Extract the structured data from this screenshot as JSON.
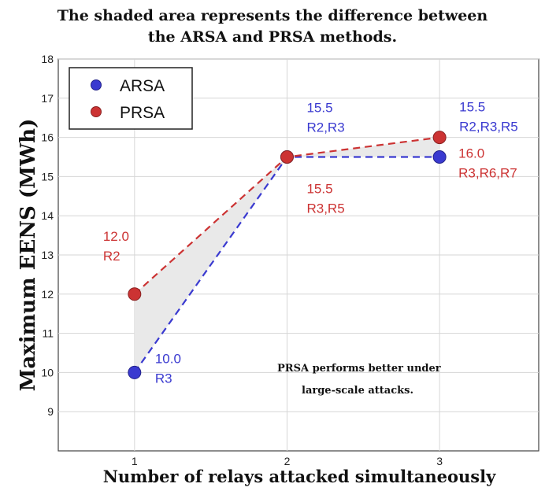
{
  "chart_data": {
    "type": "line",
    "title_lines": [
      "The shaded area represents the difference between",
      "the ARSA and PRSA methods."
    ],
    "xlabel": "Number of relays attacked simultaneously",
    "ylabel": "Maximum EENS (MWh)",
    "x": [
      1,
      2,
      3
    ],
    "xticks": [
      "1",
      "2",
      "3"
    ],
    "xlim": [
      0.5,
      3.65
    ],
    "ylim": [
      8,
      18
    ],
    "yticks": [
      "9",
      "10",
      "11",
      "12",
      "13",
      "14",
      "15",
      "16",
      "17",
      "18"
    ],
    "grid": true,
    "legend_position": "top-left",
    "shaded_between_series": true,
    "series": [
      {
        "name": "ARSA",
        "values": [
          10,
          15.5,
          15.5
        ],
        "color": "#3a3ad0"
      },
      {
        "name": "PRSA",
        "values": [
          12,
          15.5,
          16
        ],
        "color": "#cc3333"
      }
    ],
    "annotations": [
      {
        "lines": [
          "12.0",
          "R2"
        ],
        "color": "#cc3333",
        "x": 1,
        "y": 12
      },
      {
        "lines": [
          "10.0",
          "R3"
        ],
        "color": "#3a3ad0",
        "x": 1,
        "y": 10
      },
      {
        "lines": [
          "15.5",
          "R2,R3"
        ],
        "color": "#3a3ad0",
        "x": 2,
        "y": 15.5
      },
      {
        "lines": [
          "15.5",
          "R3,R5"
        ],
        "color": "#cc3333",
        "x": 2,
        "y": 15.5
      },
      {
        "lines": [
          "15.5",
          "R2,R3,R5"
        ],
        "color": "#3a3ad0",
        "x": 3,
        "y": 15.5
      },
      {
        "lines": [
          "16.0",
          "R3,R6,R7"
        ],
        "color": "#cc3333",
        "x": 3,
        "y": 16
      }
    ],
    "note_lines": [
      "PRSA performs better under",
      "large-scale attacks."
    ],
    "shade_color": "#e9e9e9"
  }
}
